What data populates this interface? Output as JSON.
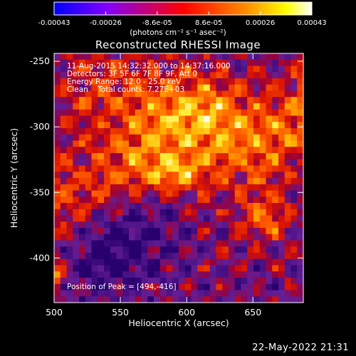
{
  "chart_data": {
    "type": "heatmap",
    "title": "Reconstructed RHESSI Image",
    "xlabel": "Heliocentric X (arcsec)",
    "ylabel": "Heliocentric Y (arcsec)",
    "xlim": [
      500,
      688
    ],
    "ylim": [
      -434,
      -244
    ],
    "x_ticks": [
      500,
      550,
      600,
      650
    ],
    "y_ticks": [
      -250,
      -300,
      -350,
      -400
    ],
    "colorbar": {
      "ticks": [
        "-0.00043",
        "-0.00026",
        "-8.6e-05",
        "8.6e-05",
        "0.00026",
        "0.00043"
      ],
      "range": [
        -0.00043,
        0.00043
      ],
      "units": "(photons cm⁻² s⁻¹ asec⁻²)",
      "colormap": [
        "#0000ff",
        "#7f00ff",
        "#ff0000",
        "#ff8000",
        "#ffff00",
        "#ffffff"
      ]
    },
    "annotations": {
      "time": "11-Aug-2015 14:32:32.000 to 14:37:16.000",
      "detectors": "Detectors: 3F 5F 6F 7F 8F 9F, Att 0",
      "energy": "Energy Range: 12.0 - 25.0 keV",
      "clean": "Clean    Total counts: 7.27E+03",
      "peak": "Position of Peak = [494,-416]"
    },
    "peak_position": [
      494,
      -416
    ],
    "total_counts": 7270,
    "energy_range_kev": [
      12.0,
      25.0
    ]
  },
  "footer": {
    "timestamp": "22-May-2022 21:31"
  }
}
